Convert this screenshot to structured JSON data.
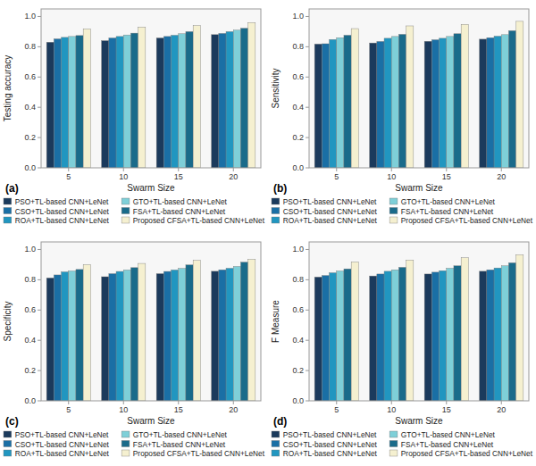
{
  "chart_data": [
    {
      "type": "bar",
      "xlabel": "Swarm Size",
      "ylabel": "Testing accuracy",
      "annotations": [
        "(a)"
      ],
      "categories": [
        "5",
        "10",
        "15",
        "20"
      ],
      "series": [
        {
          "name": "PSO+TL-based CNN+LeNet",
          "color": "#1b3a5c",
          "values": [
            0.83,
            0.84,
            0.858,
            0.88
          ]
        },
        {
          "name": "CSO+TL-based CNN+LeNet",
          "color": "#1a6fa5",
          "values": [
            0.852,
            0.858,
            0.868,
            0.888
          ]
        },
        {
          "name": "ROA+TL-based CNN+LeNet",
          "color": "#2196c0",
          "values": [
            0.862,
            0.868,
            0.876,
            0.9
          ]
        },
        {
          "name": "GTO+TL-based CNN+LeNet",
          "color": "#7ecfd8",
          "values": [
            0.868,
            0.878,
            0.886,
            0.91
          ]
        },
        {
          "name": "FSA+TL-based CNN+LeNet",
          "color": "#1a6b8a",
          "values": [
            0.874,
            0.89,
            0.9,
            0.922
          ]
        },
        {
          "name": "Proposed CFSA+TL-based CNN+LeNet",
          "color": "#f5f0d0",
          "values": [
            0.918,
            0.93,
            0.94,
            0.96
          ]
        }
      ],
      "ylim": [
        0.0,
        1.05
      ],
      "yticks": [
        {
          "value": 0.0,
          "label": "0.0"
        },
        0.2,
        0.4,
        0.6,
        0.8,
        {
          "value": 1.0,
          "label": "1.0"
        }
      ],
      "grid": false,
      "legend": "bottom"
    },
    {
      "type": "bar",
      "xlabel": "Swarm Size",
      "ylabel": "Sensitivity",
      "annotations": [
        "(b)"
      ],
      "categories": [
        "5",
        "10",
        "15",
        "20"
      ],
      "series": [
        {
          "name": "PSO+TL-based CNN+LeNet",
          "color": "#1b3a5c",
          "values": [
            0.818,
            0.825,
            0.836,
            0.85
          ]
        },
        {
          "name": "CSO+TL-based CNN+LeNet",
          "color": "#1a6fa5",
          "values": [
            0.82,
            0.835,
            0.846,
            0.86
          ]
        },
        {
          "name": "ROA+TL-based CNN+LeNet",
          "color": "#2196c0",
          "values": [
            0.848,
            0.856,
            0.856,
            0.87
          ]
        },
        {
          "name": "GTO+TL-based CNN+LeNet",
          "color": "#7ecfd8",
          "values": [
            0.86,
            0.868,
            0.868,
            0.88
          ]
        },
        {
          "name": "FSA+TL-based CNN+LeNet",
          "color": "#1a6b8a",
          "values": [
            0.876,
            0.882,
            0.886,
            0.906
          ]
        },
        {
          "name": "Proposed CFSA+TL-based CNN+LeNet",
          "color": "#f5f0d0",
          "values": [
            0.92,
            0.938,
            0.948,
            0.968
          ]
        }
      ],
      "ylim": [
        0.0,
        1.05
      ],
      "yticks": [
        {
          "value": 0.0,
          "label": "0.0"
        },
        0.2,
        0.4,
        0.6,
        0.8,
        {
          "value": 1.0,
          "label": "1.0"
        }
      ],
      "grid": false,
      "legend": "bottom"
    },
    {
      "type": "bar",
      "xlabel": "Swarm Size",
      "ylabel": "Specificity",
      "annotations": [
        "(c)"
      ],
      "categories": [
        "5",
        "10",
        "15",
        "20"
      ],
      "series": [
        {
          "name": "PSO+TL-based CNN+LeNet",
          "color": "#1b3a5c",
          "values": [
            0.812,
            0.82,
            0.84,
            0.856
          ]
        },
        {
          "name": "CSO+TL-based CNN+LeNet",
          "color": "#1a6fa5",
          "values": [
            0.832,
            0.84,
            0.855,
            0.866
          ]
        },
        {
          "name": "ROA+TL-based CNN+LeNet",
          "color": "#2196c0",
          "values": [
            0.852,
            0.855,
            0.865,
            0.876
          ]
        },
        {
          "name": "GTO+TL-based CNN+LeNet",
          "color": "#7ecfd8",
          "values": [
            0.858,
            0.865,
            0.875,
            0.888
          ]
        },
        {
          "name": "FSA+TL-based CNN+LeNet",
          "color": "#1a6b8a",
          "values": [
            0.868,
            0.88,
            0.898,
            0.916
          ]
        },
        {
          "name": "Proposed CFSA+TL-based CNN+LeNet",
          "color": "#f5f0d0",
          "values": [
            0.9,
            0.908,
            0.928,
            0.935
          ]
        }
      ],
      "ylim": [
        0.0,
        1.05
      ],
      "yticks": [
        {
          "value": 0.0,
          "label": "0.0"
        },
        0.2,
        0.4,
        0.6,
        0.8,
        {
          "value": 1.0,
          "label": "1.0"
        }
      ],
      "grid": false,
      "legend": "bottom"
    },
    {
      "type": "bar",
      "xlabel": "Swarm Size",
      "ylabel": "F Measure",
      "annotations": [
        "(d)"
      ],
      "categories": [
        "5",
        "10",
        "15",
        "20"
      ],
      "series": [
        {
          "name": "PSO+TL-based CNN+LeNet",
          "color": "#1b3a5c",
          "values": [
            0.818,
            0.825,
            0.838,
            0.856
          ]
        },
        {
          "name": "CSO+TL-based CNN+LeNet",
          "color": "#1a6fa5",
          "values": [
            0.828,
            0.838,
            0.85,
            0.866
          ]
        },
        {
          "name": "ROA+TL-based CNN+LeNet",
          "color": "#2196c0",
          "values": [
            0.846,
            0.856,
            0.86,
            0.878
          ]
        },
        {
          "name": "GTO+TL-based CNN+LeNet",
          "color": "#7ecfd8",
          "values": [
            0.858,
            0.866,
            0.876,
            0.892
          ]
        },
        {
          "name": "FSA+TL-based CNN+LeNet",
          "color": "#1a6b8a",
          "values": [
            0.872,
            0.882,
            0.892,
            0.912
          ]
        },
        {
          "name": "Proposed CFSA+TL-based CNN+LeNet",
          "color": "#f5f0d0",
          "values": [
            0.918,
            0.93,
            0.945,
            0.965
          ]
        }
      ],
      "ylim": [
        0.0,
        1.05
      ],
      "yticks": [
        {
          "value": 0.0,
          "label": "0.0"
        },
        0.2,
        0.4,
        0.6,
        0.8,
        {
          "value": 1.0,
          "label": "1.0"
        }
      ],
      "grid": false,
      "legend": "bottom"
    }
  ]
}
